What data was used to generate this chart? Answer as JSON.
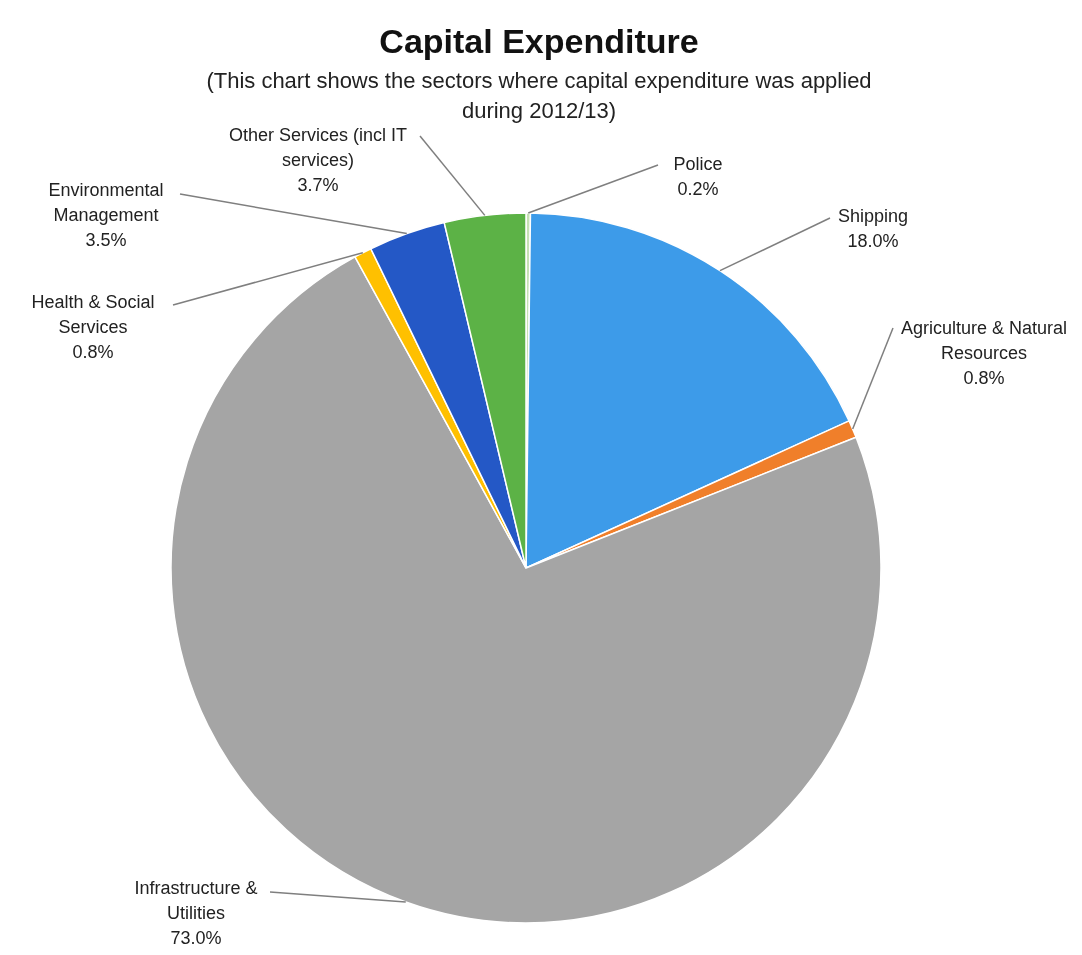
{
  "chart_data": {
    "type": "pie",
    "title": "Capital Expenditure",
    "subtitle": "(This chart shows the sectors where capital expenditure was applied during 2012/13)",
    "categories": [
      "Police",
      "Shipping",
      "Agriculture & Natural Resources",
      "Infrastructure & Utilities",
      "Health & Social Services",
      "Environmental Management",
      "Other Services (incl IT services)"
    ],
    "values": [
      0.2,
      18.0,
      0.8,
      73.0,
      0.8,
      3.5,
      3.7
    ],
    "colors": [
      "#c5e0b3",
      "#3d9be9",
      "#f07f2a",
      "#a5a5a5",
      "#ffc000",
      "#2458c6",
      "#5cb246"
    ],
    "value_labels": [
      "0.2%",
      "18.0%",
      "0.8%",
      "73.0%",
      "0.8%",
      "3.5%",
      "3.7%"
    ]
  }
}
